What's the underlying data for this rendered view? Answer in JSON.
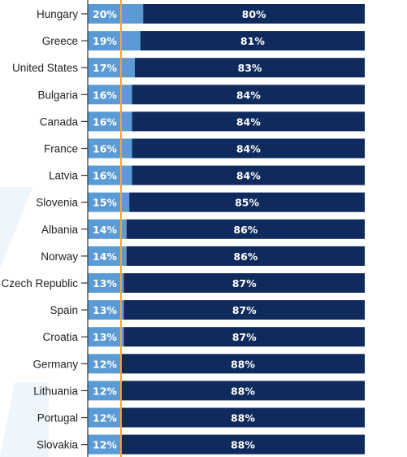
{
  "chart_data": {
    "type": "bar",
    "orientation": "horizontal",
    "stacked": true,
    "percent": true,
    "categories": [
      "Hungary",
      "Greece",
      "United States",
      "Bulgaria",
      "Canada",
      "France",
      "Latvia",
      "Slovenia",
      "Albania",
      "Norway",
      "Czech Republic",
      "Spain",
      "Croatia",
      "Germany",
      "Lithuania",
      "Portugal",
      "Slovakia"
    ],
    "series": [
      {
        "color": "#5b9bd5",
        "values": [
          20,
          19,
          17,
          16,
          16,
          16,
          16,
          15,
          14,
          14,
          13,
          13,
          13,
          12,
          12,
          12,
          12
        ]
      },
      {
        "color": "#0f2a5c",
        "values": [
          80,
          81,
          83,
          84,
          84,
          84,
          84,
          85,
          86,
          86,
          87,
          87,
          87,
          88,
          88,
          88,
          88
        ]
      }
    ],
    "value_labels": {
      "first": [
        "20%",
        "19%",
        "17%",
        "16%",
        "16%",
        "16%",
        "16%",
        "15%",
        "14%",
        "14%",
        "13%",
        "13%",
        "13%",
        "12%",
        "12%",
        "12%",
        "12%"
      ],
      "second": [
        "80%",
        "81%",
        "83%",
        "84%",
        "84%",
        "84%",
        "84%",
        "85%",
        "86%",
        "86%",
        "87%",
        "87%",
        "87%",
        "88%",
        "88%",
        "88%",
        "88%"
      ]
    },
    "reference_line": {
      "value": 12,
      "color": "#f5a623"
    },
    "xlim": [
      0,
      100
    ],
    "grid": false,
    "legend": "none"
  }
}
